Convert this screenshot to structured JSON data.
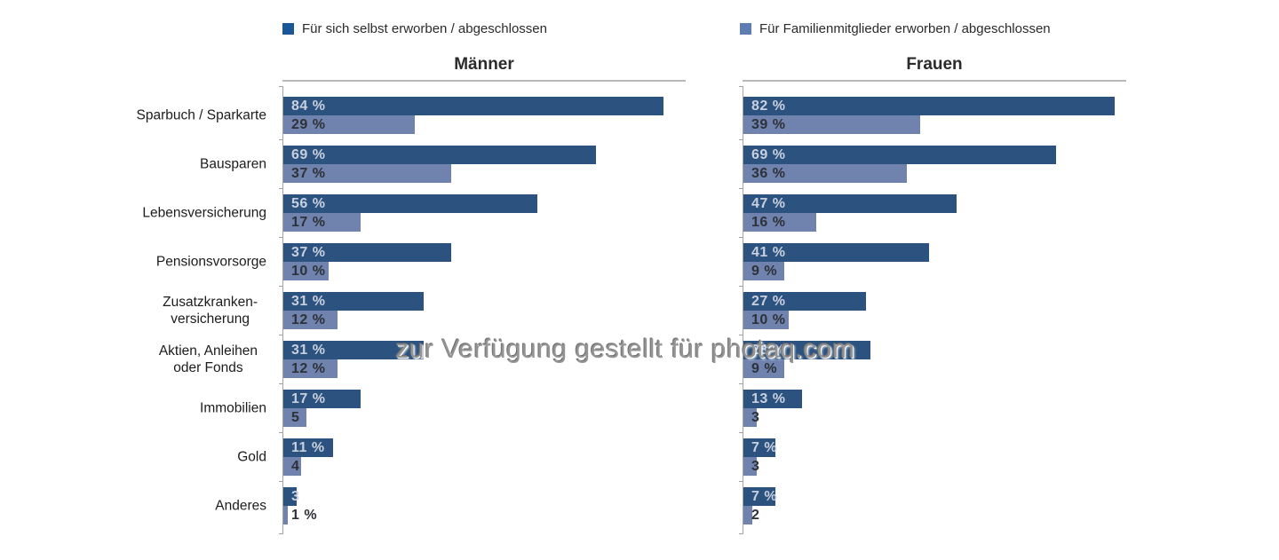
{
  "watermark": {
    "text": "zur Verfügung gestellt für photaq.com"
  },
  "legend": [
    {
      "label": "Für sich selbst erworben / abgeschlossen",
      "color": "#1b5796"
    },
    {
      "label": "Für Familienmitglieder erworben / abgeschlossen",
      "color": "#5f7cb3"
    }
  ],
  "colors": {
    "bar_self": "#2c5380",
    "bar_family": "#6f83ae",
    "axis": "#a3a3a3"
  },
  "chart_data": {
    "type": "bar",
    "orientation": "horizontal",
    "value_unit": "%",
    "xlim": [
      0,
      90
    ],
    "grid": false,
    "legend_position": "top",
    "categories": [
      {
        "lines": [
          "Sparbuch / Sparkarte"
        ]
      },
      {
        "lines": [
          "Bausparen"
        ]
      },
      {
        "lines": [
          "Lebensversicherung"
        ]
      },
      {
        "lines": [
          "Pensionsvorsorge"
        ]
      },
      {
        "lines": [
          "Zusatzkranken-",
          "versicherung"
        ]
      },
      {
        "lines": [
          "Aktien, Anleihen",
          "oder Fonds"
        ]
      },
      {
        "lines": [
          "Immobilien"
        ]
      },
      {
        "lines": [
          "Gold"
        ]
      },
      {
        "lines": [
          "Anderes"
        ]
      }
    ],
    "panels": [
      {
        "title": "Männer",
        "series": [
          {
            "name": "Für sich selbst erworben / abgeschlossen",
            "values": [
              84,
              69,
              56,
              37,
              31,
              31,
              17,
              11,
              3
            ],
            "labels": [
              "84 %",
              "69 %",
              "56 %",
              "37 %",
              "31 %",
              "31 %",
              "17 %",
              "11 %",
              "3"
            ]
          },
          {
            "name": "Für Familienmitglieder erworben / abgeschlossen",
            "values": [
              29,
              37,
              17,
              10,
              12,
              12,
              5,
              4,
              1
            ],
            "labels": [
              "29 %",
              "37 %",
              "17 %",
              "10 %",
              "12 %",
              "12 %",
              "5",
              "4",
              "1 %"
            ]
          }
        ]
      },
      {
        "title": "Frauen",
        "series": [
          {
            "name": "Für sich selbst erworben / abgeschlossen",
            "values": [
              82,
              69,
              47,
              41,
              27,
              28,
              13,
              7,
              7
            ],
            "labels": [
              "82 %",
              "69 %",
              "47 %",
              "41 %",
              "27 %",
              "28 %",
              "13 %",
              "7 %",
              "7 %"
            ]
          },
          {
            "name": "Für Familienmitglieder erworben / abgeschlossen",
            "values": [
              39,
              36,
              16,
              9,
              10,
              9,
              3,
              3,
              2
            ],
            "labels": [
              "39 %",
              "36 %",
              "16 %",
              "9 %",
              "10 %",
              "9 %",
              "3",
              "3",
              "2"
            ]
          }
        ]
      }
    ]
  }
}
